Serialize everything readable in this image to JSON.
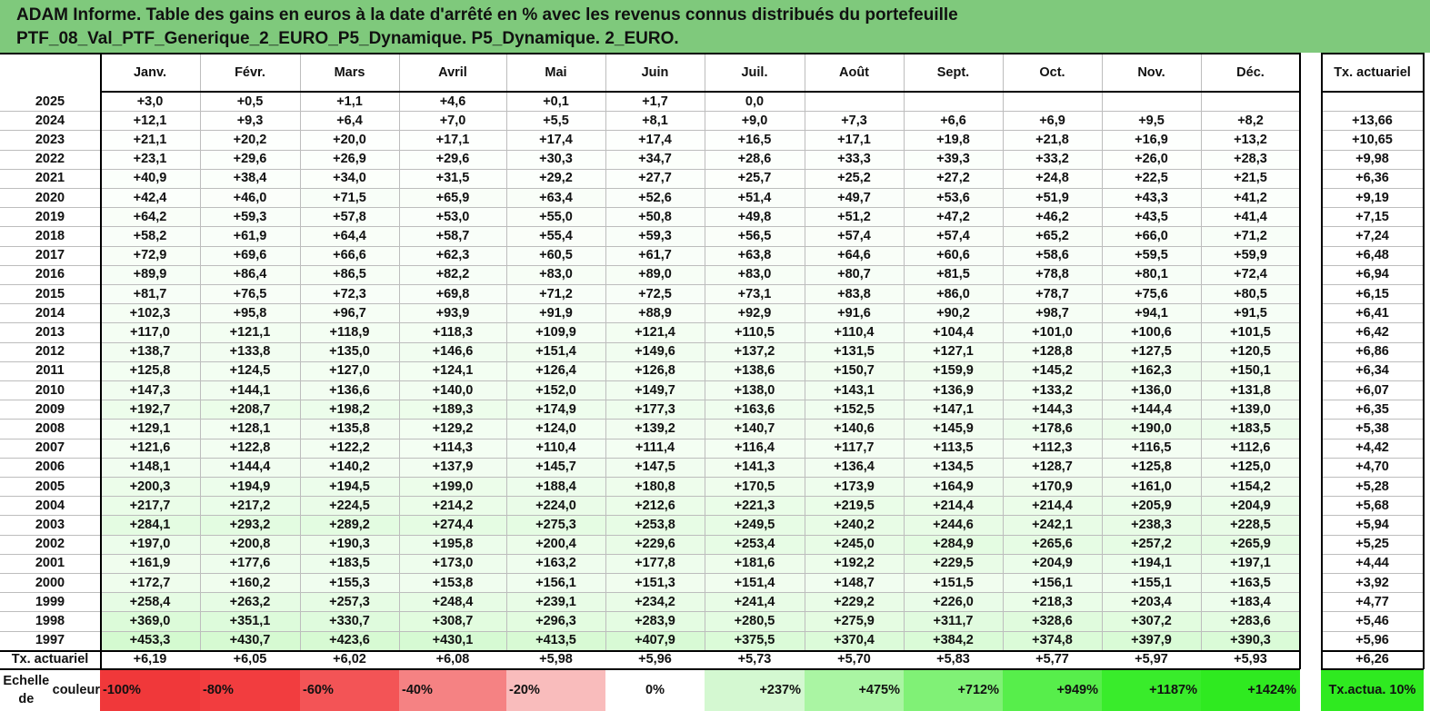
{
  "title": {
    "line1": "ADAM Informe. Table des gains en euros à la date d'arrêté en % avec les revenus connus distribués du portefeuille",
    "line2": "PTF_08_Val_PTF_Generique_2_EURO_P5_Dynamique. P5_Dynamique. 2_EURO."
  },
  "table": {
    "months": [
      "Janv.",
      "Févr.",
      "Mars",
      "Avril",
      "Mai",
      "Juin",
      "Juil.",
      "Août",
      "Sept.",
      "Oct.",
      "Nov.",
      "Déc."
    ],
    "tx_header": "Tx. actuariel",
    "rows": [
      {
        "year": "2025",
        "values": [
          "+3,0",
          "+0,5",
          "+1,1",
          "+4,6",
          "+0,1",
          "+1,7",
          "0,0",
          "",
          "",
          "",
          "",
          ""
        ],
        "tx": ""
      },
      {
        "year": "2024",
        "values": [
          "+12,1",
          "+9,3",
          "+6,4",
          "+7,0",
          "+5,5",
          "+8,1",
          "+9,0",
          "+7,3",
          "+6,6",
          "+6,9",
          "+9,5",
          "+8,2"
        ],
        "tx": "+13,66"
      },
      {
        "year": "2023",
        "values": [
          "+21,1",
          "+20,2",
          "+20,0",
          "+17,1",
          "+17,4",
          "+17,4",
          "+16,5",
          "+17,1",
          "+19,8",
          "+21,8",
          "+16,9",
          "+13,2"
        ],
        "tx": "+10,65"
      },
      {
        "year": "2022",
        "values": [
          "+23,1",
          "+29,6",
          "+26,9",
          "+29,6",
          "+30,3",
          "+34,7",
          "+28,6",
          "+33,3",
          "+39,3",
          "+33,2",
          "+26,0",
          "+28,3"
        ],
        "tx": "+9,98"
      },
      {
        "year": "2021",
        "values": [
          "+40,9",
          "+38,4",
          "+34,0",
          "+31,5",
          "+29,2",
          "+27,7",
          "+25,7",
          "+25,2",
          "+27,2",
          "+24,8",
          "+22,5",
          "+21,5"
        ],
        "tx": "+6,36"
      },
      {
        "year": "2020",
        "values": [
          "+42,4",
          "+46,0",
          "+71,5",
          "+65,9",
          "+63,4",
          "+52,6",
          "+51,4",
          "+49,7",
          "+53,6",
          "+51,9",
          "+43,3",
          "+41,2"
        ],
        "tx": "+9,19"
      },
      {
        "year": "2019",
        "values": [
          "+64,2",
          "+59,3",
          "+57,8",
          "+53,0",
          "+55,0",
          "+50,8",
          "+49,8",
          "+51,2",
          "+47,2",
          "+46,2",
          "+43,5",
          "+41,4"
        ],
        "tx": "+7,15"
      },
      {
        "year": "2018",
        "values": [
          "+58,2",
          "+61,9",
          "+64,4",
          "+58,7",
          "+55,4",
          "+59,3",
          "+56,5",
          "+57,4",
          "+57,4",
          "+65,2",
          "+66,0",
          "+71,2"
        ],
        "tx": "+7,24"
      },
      {
        "year": "2017",
        "values": [
          "+72,9",
          "+69,6",
          "+66,6",
          "+62,3",
          "+60,5",
          "+61,7",
          "+63,8",
          "+64,6",
          "+60,6",
          "+58,6",
          "+59,5",
          "+59,9"
        ],
        "tx": "+6,48"
      },
      {
        "year": "2016",
        "values": [
          "+89,9",
          "+86,4",
          "+86,5",
          "+82,2",
          "+83,0",
          "+89,0",
          "+83,0",
          "+80,7",
          "+81,5",
          "+78,8",
          "+80,1",
          "+72,4"
        ],
        "tx": "+6,94"
      },
      {
        "year": "2015",
        "values": [
          "+81,7",
          "+76,5",
          "+72,3",
          "+69,8",
          "+71,2",
          "+72,5",
          "+73,1",
          "+83,8",
          "+86,0",
          "+78,7",
          "+75,6",
          "+80,5"
        ],
        "tx": "+6,15"
      },
      {
        "year": "2014",
        "values": [
          "+102,3",
          "+95,8",
          "+96,7",
          "+93,9",
          "+91,9",
          "+88,9",
          "+92,9",
          "+91,6",
          "+90,2",
          "+98,7",
          "+94,1",
          "+91,5"
        ],
        "tx": "+6,41"
      },
      {
        "year": "2013",
        "values": [
          "+117,0",
          "+121,1",
          "+118,9",
          "+118,3",
          "+109,9",
          "+121,4",
          "+110,5",
          "+110,4",
          "+104,4",
          "+101,0",
          "+100,6",
          "+101,5"
        ],
        "tx": "+6,42"
      },
      {
        "year": "2012",
        "values": [
          "+138,7",
          "+133,8",
          "+135,0",
          "+146,6",
          "+151,4",
          "+149,6",
          "+137,2",
          "+131,5",
          "+127,1",
          "+128,8",
          "+127,5",
          "+120,5"
        ],
        "tx": "+6,86"
      },
      {
        "year": "2011",
        "values": [
          "+125,8",
          "+124,5",
          "+127,0",
          "+124,1",
          "+126,4",
          "+126,8",
          "+138,6",
          "+150,7",
          "+159,9",
          "+145,2",
          "+162,3",
          "+150,1"
        ],
        "tx": "+6,34"
      },
      {
        "year": "2010",
        "values": [
          "+147,3",
          "+144,1",
          "+136,6",
          "+140,0",
          "+152,0",
          "+149,7",
          "+138,0",
          "+143,1",
          "+136,9",
          "+133,2",
          "+136,0",
          "+131,8"
        ],
        "tx": "+6,07"
      },
      {
        "year": "2009",
        "values": [
          "+192,7",
          "+208,7",
          "+198,2",
          "+189,3",
          "+174,9",
          "+177,3",
          "+163,6",
          "+152,5",
          "+147,1",
          "+144,3",
          "+144,4",
          "+139,0"
        ],
        "tx": "+6,35"
      },
      {
        "year": "2008",
        "values": [
          "+129,1",
          "+128,1",
          "+135,8",
          "+129,2",
          "+124,0",
          "+139,2",
          "+140,7",
          "+140,6",
          "+145,9",
          "+178,6",
          "+190,0",
          "+183,5"
        ],
        "tx": "+5,38"
      },
      {
        "year": "2007",
        "values": [
          "+121,6",
          "+122,8",
          "+122,2",
          "+114,3",
          "+110,4",
          "+111,4",
          "+116,4",
          "+117,7",
          "+113,5",
          "+112,3",
          "+116,5",
          "+112,6"
        ],
        "tx": "+4,42"
      },
      {
        "year": "2006",
        "values": [
          "+148,1",
          "+144,4",
          "+140,2",
          "+137,9",
          "+145,7",
          "+147,5",
          "+141,3",
          "+136,4",
          "+134,5",
          "+128,7",
          "+125,8",
          "+125,0"
        ],
        "tx": "+4,70"
      },
      {
        "year": "2005",
        "values": [
          "+200,3",
          "+194,9",
          "+194,5",
          "+199,0",
          "+188,4",
          "+180,8",
          "+170,5",
          "+173,9",
          "+164,9",
          "+170,9",
          "+161,0",
          "+154,2"
        ],
        "tx": "+5,28"
      },
      {
        "year": "2004",
        "values": [
          "+217,7",
          "+217,2",
          "+224,5",
          "+214,2",
          "+224,0",
          "+212,6",
          "+221,3",
          "+219,5",
          "+214,4",
          "+214,4",
          "+205,9",
          "+204,9"
        ],
        "tx": "+5,68"
      },
      {
        "year": "2003",
        "values": [
          "+284,1",
          "+293,2",
          "+289,2",
          "+274,4",
          "+275,3",
          "+253,8",
          "+249,5",
          "+240,2",
          "+244,6",
          "+242,1",
          "+238,3",
          "+228,5"
        ],
        "tx": "+5,94"
      },
      {
        "year": "2002",
        "values": [
          "+197,0",
          "+200,8",
          "+190,3",
          "+195,8",
          "+200,4",
          "+229,6",
          "+253,4",
          "+245,0",
          "+284,9",
          "+265,6",
          "+257,2",
          "+265,9"
        ],
        "tx": "+5,25"
      },
      {
        "year": "2001",
        "values": [
          "+161,9",
          "+177,6",
          "+183,5",
          "+173,0",
          "+163,2",
          "+177,8",
          "+181,6",
          "+192,2",
          "+229,5",
          "+204,9",
          "+194,1",
          "+197,1"
        ],
        "tx": "+4,44"
      },
      {
        "year": "2000",
        "values": [
          "+172,7",
          "+160,2",
          "+155,3",
          "+153,8",
          "+156,1",
          "+151,3",
          "+151,4",
          "+148,7",
          "+151,5",
          "+156,1",
          "+155,1",
          "+163,5"
        ],
        "tx": "+3,92"
      },
      {
        "year": "1999",
        "values": [
          "+258,4",
          "+263,2",
          "+257,3",
          "+248,4",
          "+239,1",
          "+234,2",
          "+241,4",
          "+229,2",
          "+226,0",
          "+218,3",
          "+203,4",
          "+183,4"
        ],
        "tx": "+4,77"
      },
      {
        "year": "1998",
        "values": [
          "+369,0",
          "+351,1",
          "+330,7",
          "+308,7",
          "+296,3",
          "+283,9",
          "+280,5",
          "+275,9",
          "+311,7",
          "+328,6",
          "+307,2",
          "+283,6"
        ],
        "tx": "+5,46"
      },
      {
        "year": "1997",
        "values": [
          "+453,3",
          "+430,7",
          "+423,6",
          "+430,1",
          "+413,5",
          "+407,9",
          "+375,5",
          "+370,4",
          "+384,2",
          "+374,8",
          "+397,9",
          "+390,3"
        ],
        "tx": "+5,96"
      }
    ],
    "footer": {
      "label": "Tx. actuariel",
      "values": [
        "+6,19",
        "+6,05",
        "+6,02",
        "+6,08",
        "+5,98",
        "+5,96",
        "+5,73",
        "+5,70",
        "+5,83",
        "+5,77",
        "+5,97",
        "+5,93"
      ],
      "tx": "+6,26"
    }
  },
  "legend": {
    "label_line1": "Echelle de",
    "label_line2": "couleur",
    "items": [
      {
        "text": "-100%",
        "color": "#f0383a"
      },
      {
        "text": "-80%",
        "color": "#f23d3f"
      },
      {
        "text": "-60%",
        "color": "#f35456"
      },
      {
        "text": "-40%",
        "color": "#f58283"
      },
      {
        "text": "-20%",
        "color": "#f9bcbc"
      },
      {
        "text": "0%",
        "color": "#ffffff"
      },
      {
        "text": "+237%",
        "color": "#d4f8d1"
      },
      {
        "text": "+475%",
        "color": "#aaf5a3"
      },
      {
        "text": "+712%",
        "color": "#80f176"
      },
      {
        "text": "+949%",
        "color": "#57ee4b"
      },
      {
        "text": "+1187%",
        "color": "#39ec2b"
      },
      {
        "text": "+1424%",
        "color": "#2fea20"
      }
    ],
    "tx_line1": "Tx.",
    "tx_line2": "actua. 10%",
    "tx_color": "#2fea20"
  }
}
